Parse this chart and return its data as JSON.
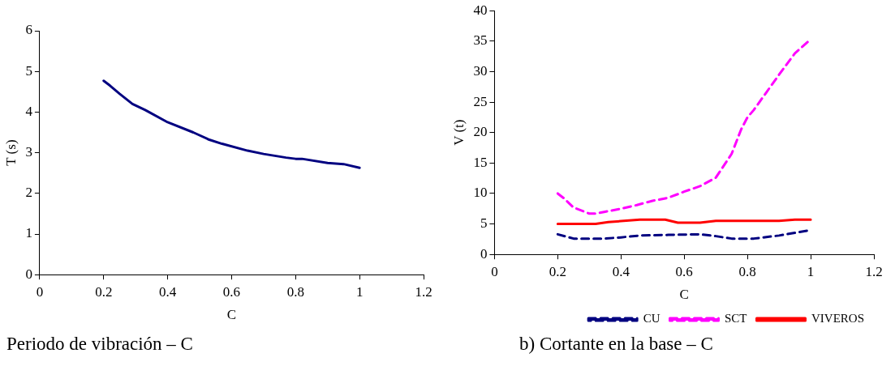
{
  "chart_data": [
    {
      "type": "line",
      "xlabel": "C",
      "ylabel": "T (s)",
      "xlim": [
        0,
        1.2
      ],
      "xticks": [
        0,
        0.2,
        0.4,
        0.6,
        0.8,
        1,
        1.2
      ],
      "ylim": [
        0,
        6
      ],
      "yticks": [
        0,
        1,
        2,
        3,
        4,
        5,
        6
      ],
      "grid": false,
      "legend": false,
      "marker": "none",
      "annotations": [
        "Periodo de vibración – C"
      ],
      "series": [
        {
          "color": "#000080",
          "line_style": "solid",
          "x": [
            0.2,
            0.22,
            0.25,
            0.29,
            0.33,
            0.4,
            0.48,
            0.53,
            0.57,
            0.65,
            0.7,
            0.77,
            0.8,
            0.82,
            0.9,
            0.95,
            1
          ],
          "values": [
            4.77,
            4.65,
            4.45,
            4.2,
            4.05,
            3.75,
            3.5,
            3.32,
            3.22,
            3.05,
            2.97,
            2.88,
            2.85,
            2.85,
            2.75,
            2.72,
            2.63
          ]
        }
      ]
    },
    {
      "type": "line",
      "xlabel": "C",
      "ylabel": "V (t)",
      "xlim": [
        0,
        1.2
      ],
      "xticks": [
        0,
        0.2,
        0.4,
        0.6,
        0.8,
        1,
        1.2
      ],
      "ylim": [
        0,
        40
      ],
      "yticks": [
        0,
        5,
        10,
        15,
        20,
        25,
        30,
        35,
        40
      ],
      "grid": false,
      "legend": "bottom",
      "marker": "none",
      "annotations": [
        "b) Cortante en la base – C"
      ],
      "series": [
        {
          "name": "CU",
          "color": "#000080",
          "line_style": "dashed",
          "x": [
            0.2,
            0.25,
            0.35,
            0.4,
            0.46,
            0.55,
            0.65,
            0.7,
            0.75,
            0.82,
            0.9,
            1
          ],
          "values": [
            3.3,
            2.6,
            2.6,
            2.8,
            3.1,
            3.2,
            3.3,
            3,
            2.6,
            2.6,
            3.1,
            4
          ]
        },
        {
          "name": "SCT",
          "color": "#ff00ff",
          "line_style": "dashed",
          "x": [
            0.2,
            0.22,
            0.25,
            0.3,
            0.32,
            0.35,
            0.4,
            0.45,
            0.5,
            0.55,
            0.6,
            0.65,
            0.7,
            0.75,
            0.78,
            0.8,
            0.82,
            0.86,
            0.9,
            0.95,
            1
          ],
          "values": [
            10,
            9.2,
            7.7,
            6.7,
            6.7,
            7,
            7.5,
            8.1,
            8.8,
            9.3,
            10.3,
            11.2,
            12.6,
            16.5,
            20.5,
            22.5,
            23.7,
            26.6,
            29.5,
            33,
            35.3
          ]
        },
        {
          "name": "VIVEROS",
          "color": "#ff0000",
          "line_style": "solid",
          "x": [
            0.2,
            0.32,
            0.36,
            0.46,
            0.54,
            0.58,
            0.65,
            0.7,
            0.9,
            0.95,
            1
          ],
          "values": [
            5,
            5,
            5.3,
            5.7,
            5.7,
            5.2,
            5.2,
            5.5,
            5.5,
            5.7,
            5.7
          ]
        }
      ]
    }
  ]
}
